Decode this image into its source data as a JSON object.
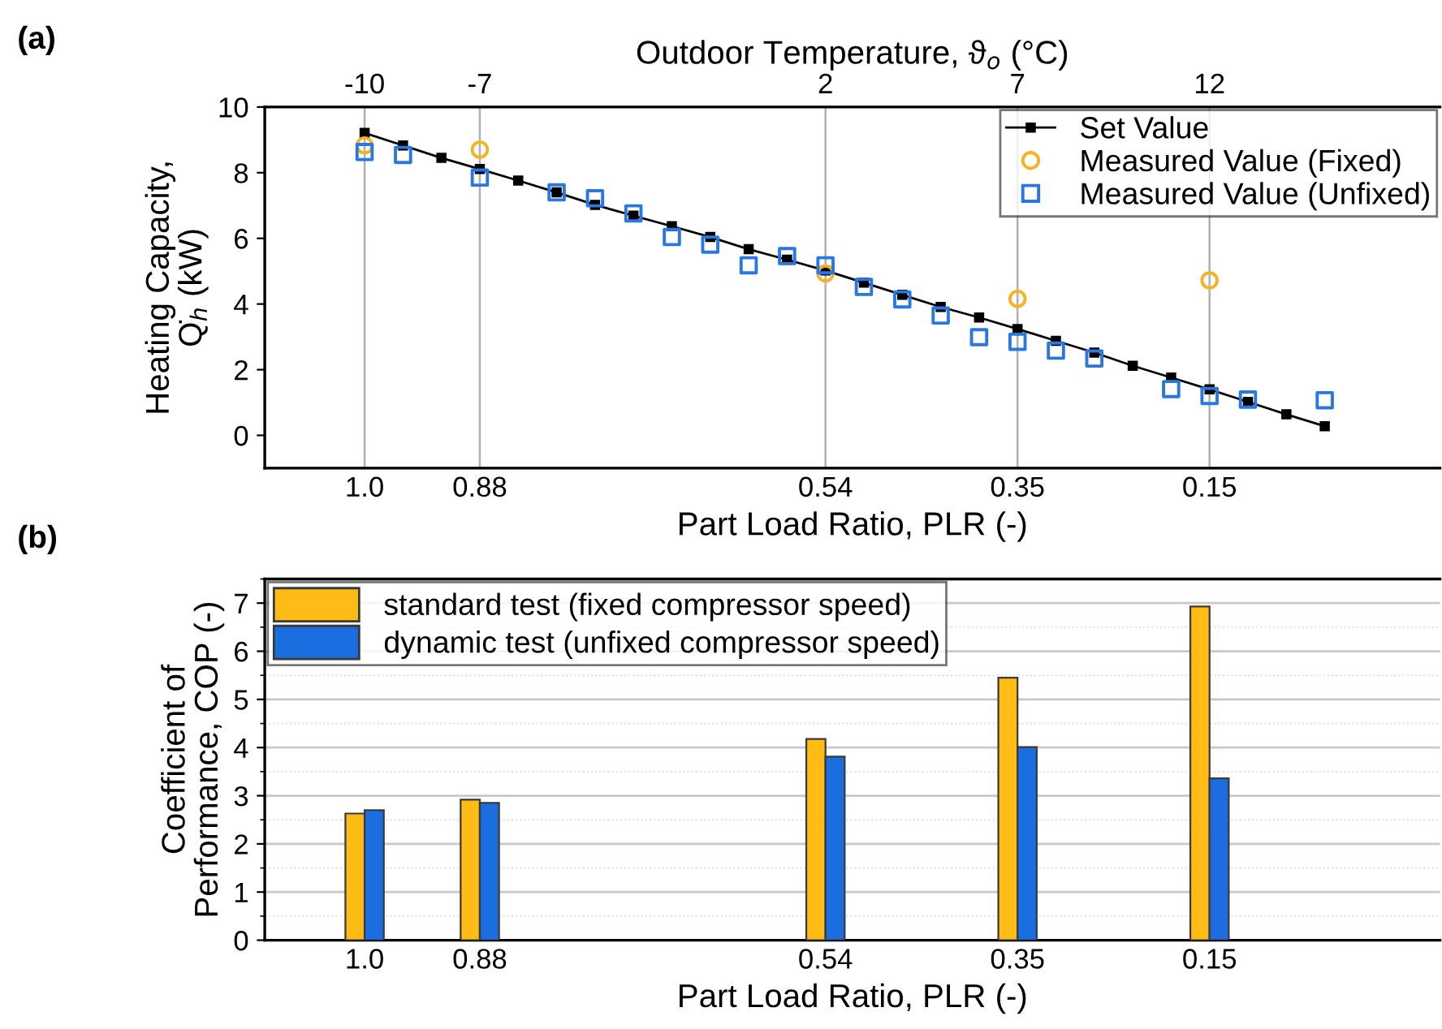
{
  "chart_data": [
    {
      "type": "line",
      "annotations": [
        "(a)"
      ],
      "xlabel": "Part Load Ratio, PLR (-)",
      "ylabel": "Heating Capacity,\nQ̇$_{h}$ (kW)",
      "x2label": "Outdoor Temperature, ϑ$_{o}$ (°C)",
      "categories": [
        "1.0",
        null,
        null,
        "0.88",
        null,
        null,
        null,
        null,
        null,
        null,
        null,
        null,
        "0.54",
        null,
        null,
        null,
        null,
        "0.35",
        null,
        null,
        null,
        null,
        "0.15",
        null,
        null,
        null
      ],
      "x2lim": [
        -12.6,
        18
      ],
      "x2ticks": [
        -10,
        -7,
        2,
        7,
        12
      ],
      "ylim": [
        -1,
        10
      ],
      "yticks": [
        0,
        2,
        4,
        6,
        8,
        10
      ],
      "grid": "x",
      "legend": "top right",
      "series": [
        {
          "name": "Set Value",
          "type": "line",
          "color": "#000000",
          "marker": "square",
          "line_style": "solid",
          "values": [
            9.21,
            8.83,
            8.45,
            8.11,
            7.76,
            7.4,
            7.02,
            6.69,
            6.37,
            6.04,
            5.67,
            5.35,
            5.02,
            4.65,
            4.28,
            3.91,
            3.59,
            3.24,
            2.88,
            2.52,
            2.12,
            1.76,
            1.4,
            1.02,
            0.64,
            0.28
          ]
        },
        {
          "name": "Measured Value (Fixed)",
          "type": "scatter",
          "color": "#f5b324",
          "marker": "circle",
          "values": [
            8.83,
            null,
            null,
            8.7,
            null,
            null,
            null,
            null,
            null,
            null,
            null,
            null,
            4.93,
            null,
            null,
            null,
            null,
            4.16,
            null,
            null,
            null,
            null,
            4.72,
            null,
            null,
            null
          ]
        },
        {
          "name": "Measured Value (Unfixed)",
          "type": "scatter",
          "color": "#2a77e0",
          "marker": "square",
          "values": [
            8.63,
            8.54,
            null,
            7.85,
            null,
            7.4,
            7.22,
            6.76,
            6.04,
            5.81,
            5.18,
            5.46,
            5.18,
            4.52,
            4.14,
            3.65,
            2.99,
            2.85,
            2.58,
            2.34,
            null,
            1.41,
            1.2,
            1.09,
            null,
            1.07
          ]
        }
      ]
    },
    {
      "type": "bar",
      "annotations": [
        "(b)"
      ],
      "xlabel": "Part Load Ratio, PLR (-)",
      "ylabel": "Coefficient of\nPerformance, COP (-)",
      "categories": [
        "1.0",
        null,
        null,
        "0.88",
        null,
        null,
        null,
        null,
        null,
        null,
        null,
        null,
        "0.54",
        null,
        null,
        null,
        null,
        "0.35",
        null,
        null,
        null,
        null,
        "0.15",
        null,
        null,
        null
      ],
      "ylim": [
        0,
        7.5
      ],
      "yticks": [
        0,
        1,
        2,
        3,
        4,
        5,
        6,
        7
      ],
      "grid": "y",
      "legend": "top left",
      "series": [
        {
          "name": "standard test (fixed compressor speed)",
          "color": "#ffbc14",
          "values": [
            2.63,
            null,
            null,
            2.92,
            null,
            null,
            null,
            null,
            null,
            null,
            null,
            null,
            4.18,
            null,
            null,
            null,
            null,
            5.45,
            null,
            null,
            null,
            null,
            6.93,
            null,
            null,
            null
          ]
        },
        {
          "name": "dynamic test (unfixed compressor speed)",
          "color": "#1a6ee0",
          "values": [
            2.7,
            null,
            null,
            2.85,
            null,
            null,
            null,
            null,
            null,
            null,
            null,
            null,
            3.81,
            null,
            null,
            null,
            null,
            4.01,
            null,
            null,
            null,
            null,
            3.36,
            null,
            null,
            null
          ]
        }
      ]
    }
  ]
}
